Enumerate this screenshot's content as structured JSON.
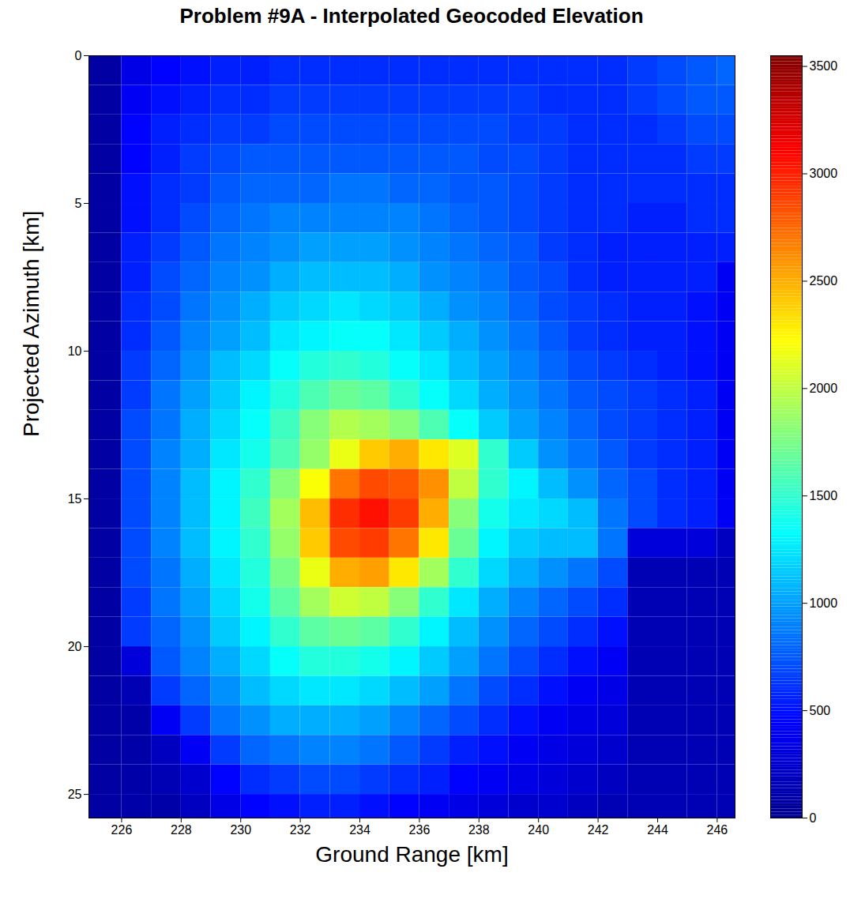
{
  "chart_data": {
    "type": "heatmap",
    "title": "Problem #9A - Interpolated Geocoded Elevation",
    "x_label": "Ground Range [km]",
    "y_label": "Projected Azimuth [km]",
    "xlim": [
      224.9,
      246.6
    ],
    "ylim": [
      0,
      25.8
    ],
    "xticks": [
      226,
      228,
      230,
      232,
      234,
      236,
      238,
      240,
      242,
      244,
      246
    ],
    "yticks": [
      0,
      5,
      10,
      15,
      20,
      25
    ],
    "color": "jet",
    "x_edges": [
      224.9,
      226,
      227,
      228,
      229,
      230,
      231,
      232,
      233,
      234,
      235,
      236,
      237,
      238,
      239,
      240,
      241,
      242,
      243,
      244,
      245,
      246,
      246.6
    ],
    "y_edges": [
      0,
      1,
      2,
      3,
      4,
      5,
      6,
      7,
      8,
      9,
      10,
      11,
      12,
      13,
      14,
      15,
      16,
      17,
      18,
      19,
      20,
      21,
      22,
      23,
      24,
      25,
      25.8
    ],
    "values": [
      [
        80,
        350,
        450,
        500,
        550,
        550,
        600,
        600,
        600,
        600,
        600,
        600,
        600,
        600,
        600,
        600,
        600,
        600,
        650,
        700,
        750,
        800
      ],
      [
        80,
        400,
        500,
        550,
        600,
        600,
        650,
        650,
        650,
        650,
        650,
        650,
        650,
        650,
        650,
        600,
        600,
        600,
        650,
        700,
        750,
        750
      ],
      [
        80,
        450,
        550,
        600,
        650,
        650,
        700,
        700,
        700,
        700,
        700,
        700,
        700,
        700,
        650,
        650,
        600,
        600,
        600,
        650,
        700,
        700
      ],
      [
        80,
        450,
        550,
        650,
        700,
        750,
        750,
        750,
        750,
        750,
        750,
        750,
        750,
        700,
        700,
        650,
        600,
        600,
        600,
        600,
        650,
        650
      ],
      [
        80,
        500,
        600,
        650,
        750,
        800,
        800,
        800,
        850,
        850,
        800,
        800,
        750,
        750,
        700,
        650,
        600,
        600,
        600,
        600,
        600,
        600
      ],
      [
        80,
        500,
        600,
        700,
        800,
        850,
        900,
        900,
        900,
        900,
        900,
        850,
        800,
        750,
        700,
        650,
        600,
        600,
        550,
        550,
        600,
        600
      ],
      [
        80,
        550,
        650,
        750,
        850,
        900,
        950,
        1000,
        1000,
        1000,
        950,
        900,
        850,
        800,
        750,
        650,
        600,
        550,
        550,
        550,
        550,
        550
      ],
      [
        80,
        550,
        700,
        800,
        900,
        950,
        1050,
        1100,
        1100,
        1100,
        1050,
        950,
        900,
        850,
        750,
        700,
        600,
        550,
        550,
        550,
        550,
        400
      ],
      [
        80,
        600,
        700,
        850,
        950,
        1050,
        1150,
        1200,
        1250,
        1200,
        1150,
        1050,
        950,
        900,
        800,
        700,
        650,
        600,
        550,
        550,
        500,
        400
      ],
      [
        80,
        600,
        750,
        900,
        1000,
        1100,
        1250,
        1300,
        1350,
        1350,
        1250,
        1150,
        1050,
        950,
        850,
        750,
        650,
        600,
        550,
        550,
        500,
        400
      ],
      [
        80,
        650,
        800,
        950,
        1100,
        1200,
        1350,
        1450,
        1500,
        1450,
        1350,
        1250,
        1100,
        1000,
        900,
        800,
        700,
        650,
        600,
        550,
        500,
        400
      ],
      [
        80,
        650,
        850,
        1000,
        1150,
        1300,
        1450,
        1600,
        1700,
        1650,
        1500,
        1350,
        1200,
        1050,
        950,
        850,
        750,
        700,
        650,
        600,
        550,
        400
      ],
      [
        80,
        700,
        850,
        1050,
        1200,
        1350,
        1550,
        1800,
        1950,
        1900,
        1800,
        1600,
        1350,
        1150,
        1000,
        900,
        800,
        700,
        650,
        600,
        550,
        400
      ],
      [
        80,
        700,
        900,
        1050,
        1250,
        1400,
        1600,
        1850,
        2150,
        2400,
        2500,
        2300,
        2100,
        1500,
        1150,
        950,
        850,
        750,
        650,
        600,
        550,
        400
      ],
      [
        80,
        700,
        900,
        1100,
        1300,
        1500,
        1800,
        2200,
        2700,
        2850,
        2800,
        2600,
        2000,
        1500,
        1300,
        1100,
        950,
        800,
        700,
        600,
        550,
        400
      ],
      [
        80,
        700,
        900,
        1100,
        1300,
        1550,
        1900,
        2450,
        2950,
        3050,
        2900,
        2500,
        1800,
        1400,
        1250,
        1200,
        1100,
        850,
        700,
        600,
        550,
        400
      ],
      [
        80,
        700,
        900,
        1100,
        1300,
        1500,
        1850,
        2400,
        2850,
        2900,
        2700,
        2300,
        1700,
        1300,
        1150,
        1100,
        1100,
        850,
        300,
        300,
        300,
        200
      ],
      [
        80,
        700,
        850,
        1050,
        1250,
        1450,
        1750,
        2150,
        2500,
        2550,
        2300,
        1900,
        1500,
        1200,
        1050,
        950,
        850,
        700,
        150,
        150,
        150,
        150
      ],
      [
        80,
        650,
        850,
        1000,
        1200,
        1400,
        1650,
        1900,
        2050,
        2000,
        1800,
        1500,
        1250,
        1050,
        900,
        800,
        700,
        600,
        150,
        150,
        150,
        150
      ],
      [
        80,
        650,
        800,
        950,
        1150,
        1300,
        1500,
        1650,
        1700,
        1650,
        1500,
        1300,
        1100,
        950,
        800,
        700,
        600,
        500,
        150,
        150,
        150,
        150
      ],
      [
        80,
        300,
        750,
        900,
        1050,
        1200,
        1350,
        1450,
        1450,
        1400,
        1300,
        1150,
        1000,
        850,
        700,
        600,
        500,
        400,
        150,
        150,
        150,
        150
      ],
      [
        80,
        150,
        650,
        800,
        950,
        1100,
        1200,
        1250,
        1250,
        1200,
        1100,
        1000,
        850,
        700,
        600,
        500,
        400,
        350,
        150,
        150,
        150,
        150
      ],
      [
        80,
        100,
        400,
        650,
        850,
        950,
        1050,
        1050,
        1050,
        1000,
        900,
        800,
        700,
        600,
        500,
        400,
        350,
        300,
        150,
        150,
        150,
        150
      ],
      [
        80,
        100,
        200,
        400,
        650,
        800,
        850,
        900,
        900,
        850,
        750,
        650,
        550,
        500,
        400,
        350,
        300,
        250,
        150,
        150,
        150,
        150
      ],
      [
        80,
        100,
        150,
        250,
        450,
        600,
        650,
        700,
        700,
        650,
        600,
        550,
        450,
        400,
        350,
        300,
        250,
        200,
        150,
        150,
        150,
        150
      ],
      [
        80,
        100,
        100,
        200,
        350,
        450,
        500,
        550,
        550,
        500,
        450,
        400,
        350,
        300,
        250,
        250,
        200,
        150,
        150,
        150,
        150,
        150
      ]
    ],
    "colorbar": {
      "range": [
        0,
        3550
      ],
      "ticks": [
        0,
        500,
        1000,
        1500,
        2000,
        2500,
        3000,
        3500
      ]
    }
  }
}
